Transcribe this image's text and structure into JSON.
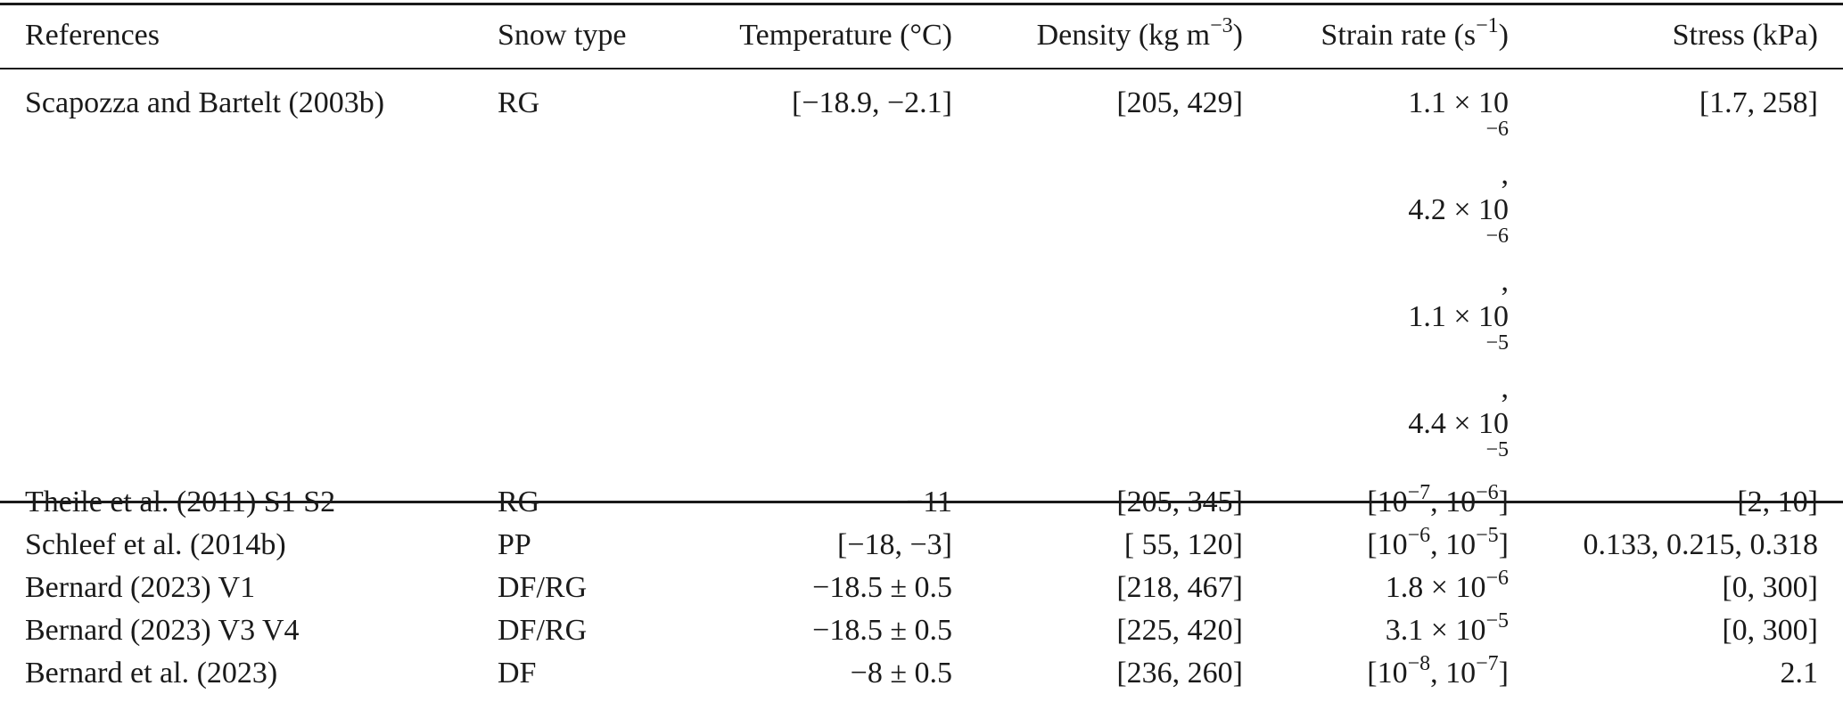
{
  "table": {
    "headers": {
      "references": "References",
      "snow_type": "Snow type",
      "temperature": "Temperature (°C)",
      "density_base": "Density (kg m",
      "density_exp": "−3",
      "density_tail": ")",
      "strain_base": "Strain rate (s",
      "strain_exp": "−1",
      "strain_tail": ")",
      "stress": "Stress (kPa)"
    },
    "rows": [
      {
        "reference": "Scapozza and Bartelt (2003b)",
        "snow_type": "RG",
        "temperature": "[−18.9, −2.1]",
        "density": "[205, 429]",
        "strain_lines": [
          {
            "base": "1.1 × 10",
            "exp": "−6",
            "tail": ","
          },
          {
            "base": "4.2 × 10",
            "exp": "−6",
            "tail": ","
          },
          {
            "base": "1.1 × 10",
            "exp": "−5",
            "tail": ","
          },
          {
            "base": "4.4 × 10",
            "exp": "−5",
            "tail": ""
          }
        ],
        "stress": "[1.7, 258]"
      },
      {
        "reference": "Theile et al. (2011) S1 S2",
        "snow_type": "RG",
        "temperature": "−11",
        "density": "[205, 345]",
        "strain": {
          "p1": "[10",
          "e1": "−7",
          "p2": ", 10",
          "e2": "−6",
          "p3": "]"
        },
        "stress": "[2, 10]"
      },
      {
        "reference": "Schleef et al. (2014b)",
        "snow_type": "PP",
        "temperature": "[−18, −3]",
        "density": "[ 55, 120]",
        "strain": {
          "p1": "[10",
          "e1": "−6",
          "p2": ", 10",
          "e2": "−5",
          "p3": "]"
        },
        "stress": "0.133, 0.215, 0.318"
      },
      {
        "reference": "Bernard (2023) V1",
        "snow_type": "DF/RG",
        "temperature": "−18.5 ± 0.5",
        "density": "[218, 467]",
        "strain": {
          "base": "1.8 × 10",
          "exp": "−6"
        },
        "stress": "[0, 300]"
      },
      {
        "reference": "Bernard (2023) V3 V4",
        "snow_type": "DF/RG",
        "temperature": "−18.5 ± 0.5",
        "density": "[225, 420]",
        "strain": {
          "base": "3.1 × 10",
          "exp": "−5"
        },
        "stress": "[0, 300]"
      },
      {
        "reference": "Bernard et al. (2023)",
        "snow_type": "DF",
        "temperature": "−8 ± 0.5",
        "density": "[236, 260]",
        "strain": {
          "p1": "[10",
          "e1": "−8",
          "p2": ", 10",
          "e2": "−7",
          "p3": "]"
        },
        "stress": "2.1"
      }
    ]
  }
}
